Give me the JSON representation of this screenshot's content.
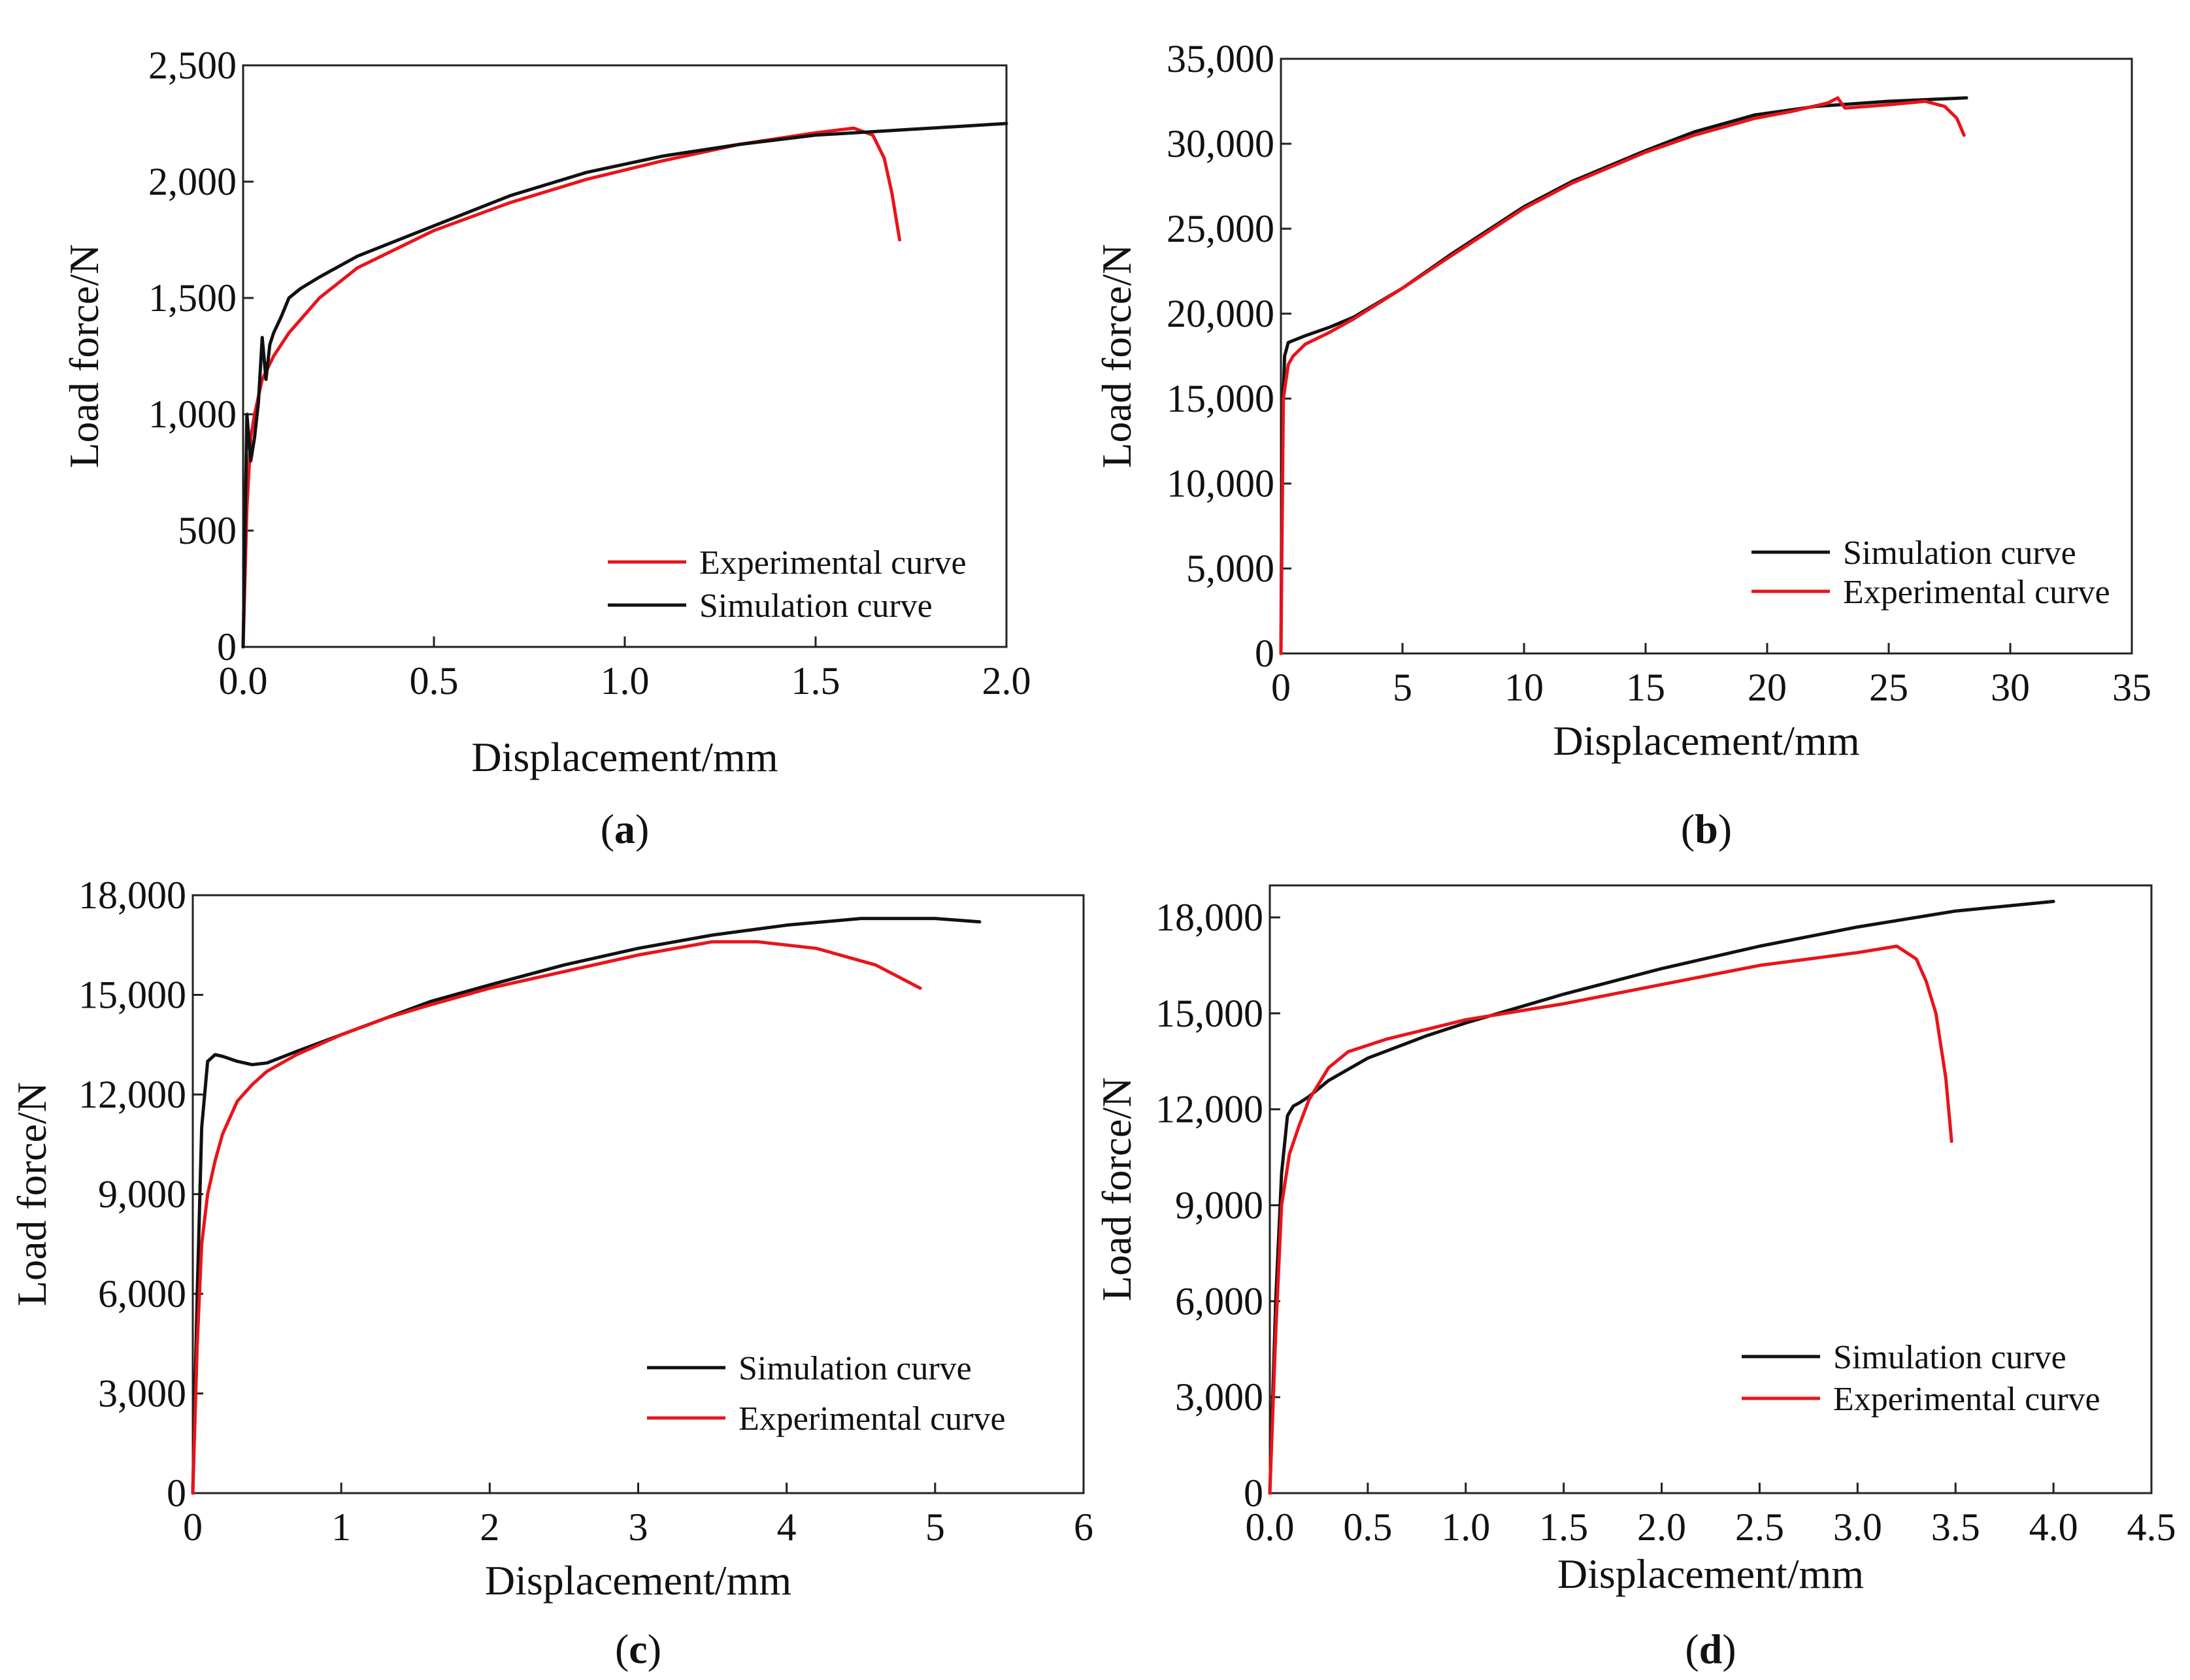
{
  "colors": {
    "simulation": "#111111",
    "experimental": "#e8141b",
    "frame": "#222222"
  },
  "chart_data": [
    {
      "id": "a",
      "type": "line",
      "caption": "(a)",
      "caption_letter": "a",
      "xlabel": "Displacement/mm",
      "ylabel": "Load force/N",
      "xlim": [
        0,
        2.0
      ],
      "ylim": [
        0,
        2500
      ],
      "xticks": [
        0,
        0.5,
        1.0,
        1.5,
        2.0
      ],
      "xtick_labels": [
        "0.0",
        "0.5",
        "1.0",
        "1.5",
        "2.0"
      ],
      "yticks": [
        0,
        500,
        1000,
        1500,
        2000,
        2500
      ],
      "ytick_labels": [
        "0",
        "500",
        "1,000",
        "1,500",
        "2,000",
        "2,500"
      ],
      "legend_order": [
        "Experimental curve",
        "Simulation curve"
      ],
      "series": [
        {
          "name": "Experimental curve",
          "color": "experimental",
          "x": [
            0,
            0.01,
            0.02,
            0.03,
            0.05,
            0.08,
            0.12,
            0.2,
            0.3,
            0.5,
            0.7,
            0.9,
            1.1,
            1.3,
            1.5,
            1.6,
            1.65,
            1.68,
            1.7,
            1.72
          ],
          "y": [
            0,
            600,
            900,
            1000,
            1150,
            1250,
            1350,
            1500,
            1630,
            1790,
            1910,
            2010,
            2090,
            2160,
            2210,
            2230,
            2200,
            2100,
            1950,
            1750
          ]
        },
        {
          "name": "Simulation curve",
          "color": "simulation",
          "x": [
            0,
            0.01,
            0.02,
            0.03,
            0.04,
            0.05,
            0.06,
            0.07,
            0.08,
            0.1,
            0.12,
            0.15,
            0.2,
            0.3,
            0.5,
            0.7,
            0.9,
            1.1,
            1.3,
            1.5,
            1.7,
            1.9,
            2.0
          ],
          "y": [
            0,
            1000,
            800,
            900,
            1050,
            1330,
            1150,
            1300,
            1350,
            1420,
            1500,
            1540,
            1590,
            1680,
            1810,
            1940,
            2040,
            2110,
            2160,
            2200,
            2220,
            2240,
            2250
          ]
        }
      ]
    },
    {
      "id": "b",
      "type": "line",
      "caption": "(b)",
      "caption_letter": "b",
      "xlabel": "Displacement/mm",
      "ylabel": "Load force/N",
      "xlim": [
        0,
        35
      ],
      "ylim": [
        0,
        35000
      ],
      "xticks": [
        0,
        5,
        10,
        15,
        20,
        25,
        30,
        35
      ],
      "xtick_labels": [
        "0",
        "5",
        "10",
        "15",
        "20",
        "25",
        "30",
        "35"
      ],
      "yticks": [
        0,
        5000,
        10000,
        15000,
        20000,
        25000,
        30000,
        35000
      ],
      "ytick_labels": [
        "0",
        "5,000",
        "10,000",
        "15,000",
        "20,000",
        "25,000",
        "30,000",
        "35,000"
      ],
      "legend_order": [
        "Simulation curve",
        "Experimental curve"
      ],
      "series": [
        {
          "name": "Simulation curve",
          "color": "simulation",
          "x": [
            0,
            0.05,
            0.15,
            0.3,
            1,
            2,
            3,
            5,
            7,
            10,
            12,
            15,
            17,
            19.5,
            22,
            25,
            28.2
          ],
          "y": [
            0,
            13000,
            17500,
            18300,
            18700,
            19200,
            19800,
            21500,
            23500,
            26300,
            27800,
            29600,
            30700,
            31700,
            32200,
            32500,
            32700
          ]
        },
        {
          "name": "Experimental curve",
          "color": "experimental",
          "x": [
            0,
            0.1,
            0.3,
            0.5,
            1,
            2,
            3,
            5,
            7,
            10,
            12,
            15,
            17,
            19.5,
            21,
            22.5,
            22.9,
            23.2,
            25,
            26.5,
            27.3,
            27.8,
            28.1
          ],
          "y": [
            0,
            15000,
            17000,
            17500,
            18200,
            18900,
            19700,
            21500,
            23400,
            26200,
            27700,
            29500,
            30500,
            31500,
            31900,
            32400,
            32700,
            32100,
            32300,
            32500,
            32200,
            31500,
            30500
          ]
        }
      ]
    },
    {
      "id": "c",
      "type": "line",
      "caption": "(c)",
      "caption_letter": "c",
      "xlabel": "Displacement/mm",
      "ylabel": "Load force/N",
      "xlim": [
        0,
        6
      ],
      "ylim": [
        0,
        18000
      ],
      "xticks": [
        0,
        1,
        2,
        3,
        4,
        5,
        6
      ],
      "xtick_labels": [
        "0",
        "1",
        "2",
        "3",
        "4",
        "5",
        "6"
      ],
      "yticks": [
        0,
        3000,
        6000,
        9000,
        12000,
        15000,
        18000
      ],
      "ytick_labels": [
        "0",
        "3,000",
        "6,000",
        "9,000",
        "12,000",
        "15,000",
        "18,000"
      ],
      "legend_order": [
        "Simulation curve",
        "Experimental curve"
      ],
      "series": [
        {
          "name": "Simulation curve",
          "color": "simulation",
          "x": [
            0,
            0.03,
            0.06,
            0.1,
            0.15,
            0.2,
            0.3,
            0.4,
            0.5,
            0.7,
            1.0,
            1.3,
            1.6,
            2.0,
            2.5,
            3.0,
            3.5,
            4.0,
            4.5,
            5.0,
            5.3
          ],
          "y": [
            0,
            6000,
            11000,
            13000,
            13200,
            13150,
            13000,
            12900,
            12950,
            13300,
            13800,
            14300,
            14800,
            15300,
            15900,
            16400,
            16800,
            17100,
            17300,
            17300,
            17200
          ]
        },
        {
          "name": "Experimental curve",
          "color": "experimental",
          "x": [
            0,
            0.03,
            0.06,
            0.1,
            0.15,
            0.2,
            0.3,
            0.4,
            0.5,
            0.7,
            1.0,
            1.3,
            1.6,
            2.0,
            2.5,
            3.0,
            3.5,
            3.8,
            4.2,
            4.6,
            4.9
          ],
          "y": [
            0,
            4500,
            7500,
            9000,
            10000,
            10800,
            11800,
            12300,
            12700,
            13200,
            13800,
            14300,
            14700,
            15200,
            15700,
            16200,
            16600,
            16600,
            16400,
            15900,
            15200
          ]
        }
      ]
    },
    {
      "id": "d",
      "type": "line",
      "caption": "(d)",
      "caption_letter": "d",
      "xlabel": "Displacement/mm",
      "ylabel": "Load force/N",
      "xlim": [
        0,
        4.5
      ],
      "ylim": [
        0,
        19000
      ],
      "xticks": [
        0,
        0.5,
        1.0,
        1.5,
        2.0,
        2.5,
        3.0,
        3.5,
        4.0,
        4.5
      ],
      "xtick_labels": [
        "0.0",
        "0.5",
        "1.0",
        "1.5",
        "2.0",
        "2.5",
        "3.0",
        "3.5",
        "4.0",
        "4.5"
      ],
      "yticks": [
        0,
        3000,
        6000,
        9000,
        12000,
        15000,
        18000
      ],
      "ytick_labels": [
        "0",
        "3,000",
        "6,000",
        "9,000",
        "12,000",
        "15,000",
        "18,000"
      ],
      "legend_order": [
        "Simulation curve",
        "Experimental curve"
      ],
      "series": [
        {
          "name": "Simulation curve",
          "color": "simulation",
          "x": [
            0,
            0.03,
            0.06,
            0.09,
            0.12,
            0.15,
            0.2,
            0.3,
            0.5,
            0.8,
            1.0,
            1.5,
            2.0,
            2.5,
            3.0,
            3.5,
            4.0
          ],
          "y": [
            0,
            6000,
            10000,
            11800,
            12100,
            12200,
            12400,
            12900,
            13600,
            14300,
            14700,
            15600,
            16400,
            17100,
            17700,
            18200,
            18500
          ]
        },
        {
          "name": "Experimental curve",
          "color": "experimental",
          "x": [
            0,
            0.03,
            0.06,
            0.1,
            0.15,
            0.2,
            0.3,
            0.4,
            0.6,
            0.8,
            1.0,
            1.5,
            2.0,
            2.5,
            3.0,
            3.2,
            3.3,
            3.35,
            3.4,
            3.45,
            3.48
          ],
          "y": [
            0,
            5000,
            9000,
            10600,
            11500,
            12300,
            13300,
            13800,
            14200,
            14500,
            14800,
            15300,
            15900,
            16500,
            16900,
            17100,
            16700,
            16000,
            15000,
            13000,
            11000
          ]
        }
      ]
    }
  ]
}
